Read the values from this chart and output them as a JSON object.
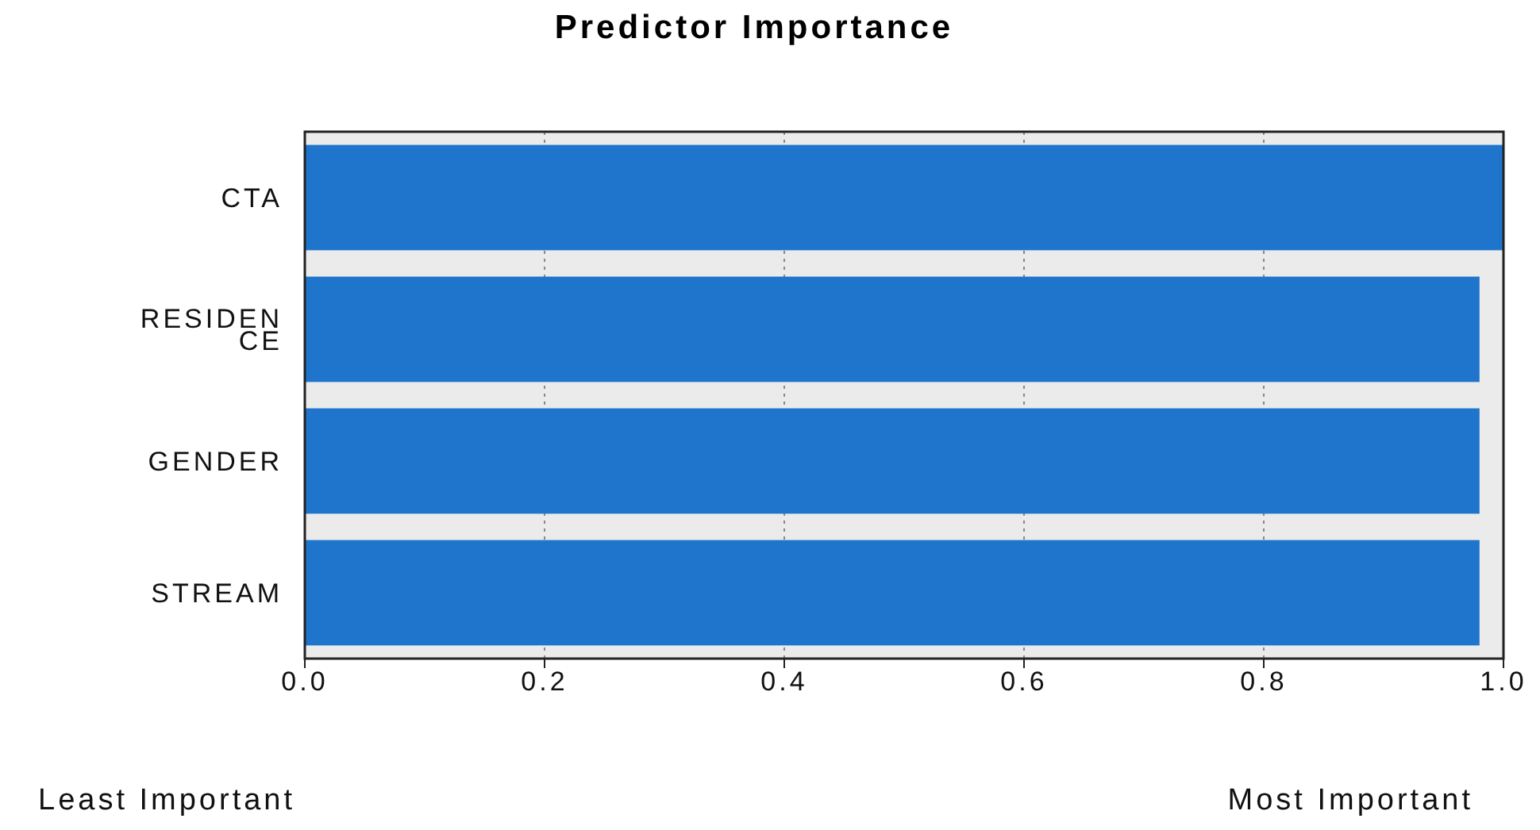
{
  "chart_data": {
    "type": "bar",
    "orientation": "horizontal",
    "title": "Predictor Importance",
    "categories": [
      "CTA",
      "RESIDENCE",
      "GENDER",
      "STREAM"
    ],
    "values": [
      1.0,
      0.98,
      0.98,
      0.98
    ],
    "color": "#1f75cc",
    "xlim": [
      0,
      1
    ],
    "xticks": [
      "0.0",
      0.2,
      0.4,
      0.6,
      0.8,
      "1.0"
    ],
    "grid": "x",
    "annotations": [
      "Least Important",
      "Most Important"
    ]
  }
}
